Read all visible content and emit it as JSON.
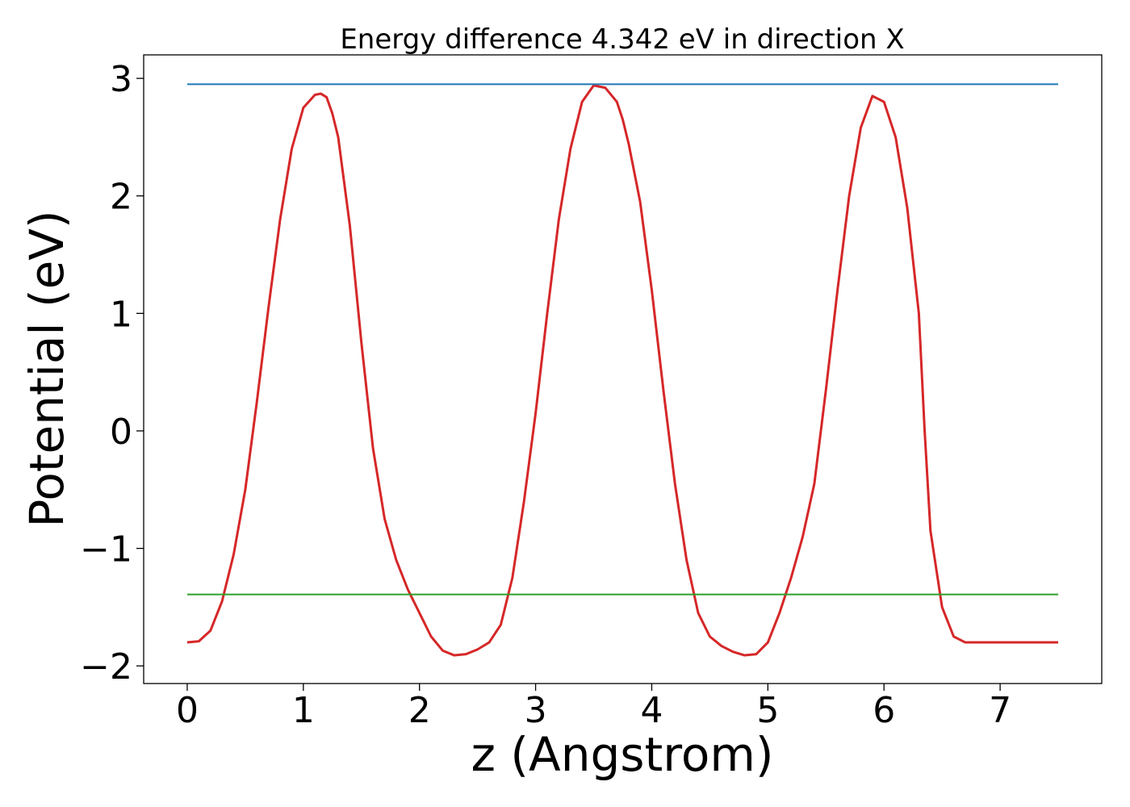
{
  "chart_data": {
    "type": "line",
    "title": "Energy difference 4.342 eV in direction X",
    "xlabel": "z (Angstrom)",
    "ylabel": "Potential (eV)",
    "xlim": [
      -0.375,
      7.875
    ],
    "ylim": [
      -2.15,
      3.2
    ],
    "xticks": [
      0,
      1,
      2,
      3,
      4,
      5,
      6,
      7
    ],
    "xtick_labels": [
      "0",
      "1",
      "2",
      "3",
      "4",
      "5",
      "6",
      "7"
    ],
    "yticks": [
      -2,
      -1,
      0,
      1,
      2,
      3
    ],
    "ytick_labels": [
      "−2",
      "−1",
      "0",
      "1",
      "2",
      "3"
    ],
    "grid": false,
    "series": [
      {
        "color": "#d62728",
        "x": [
          0,
          0.1,
          0.2,
          0.3,
          0.4,
          0.5,
          0.6,
          0.7,
          0.8,
          0.9,
          1.0,
          1.1,
          1.15,
          1.2,
          1.25,
          1.3,
          1.4,
          1.5,
          1.6,
          1.7,
          1.8,
          1.9,
          2.0,
          2.1,
          2.2,
          2.3,
          2.4,
          2.5,
          2.6,
          2.7,
          2.8,
          2.9,
          3.0,
          3.1,
          3.2,
          3.3,
          3.4,
          3.5,
          3.6,
          3.7,
          3.75,
          3.8,
          3.9,
          4.0,
          4.1,
          4.2,
          4.3,
          4.4,
          4.5,
          4.6,
          4.7,
          4.8,
          4.9,
          5.0,
          5.1,
          5.2,
          5.3,
          5.4,
          5.5,
          5.6,
          5.7,
          5.8,
          5.9,
          6.0,
          6.1,
          6.2,
          6.3,
          6.35,
          6.4,
          6.5,
          6.6,
          6.7,
          6.8,
          6.9,
          7.0,
          7.1,
          7.2,
          7.3,
          7.4,
          7.5
        ],
        "y": [
          -1.8,
          -1.79,
          -1.7,
          -1.45,
          -1.05,
          -0.5,
          0.25,
          1.05,
          1.8,
          2.4,
          2.75,
          2.86,
          2.87,
          2.84,
          2.7,
          2.5,
          1.75,
          0.75,
          -0.15,
          -0.75,
          -1.1,
          -1.35,
          -1.55,
          -1.75,
          -1.87,
          -1.91,
          -1.9,
          -1.86,
          -1.8,
          -1.65,
          -1.25,
          -0.6,
          0.15,
          1.0,
          1.8,
          2.4,
          2.8,
          2.94,
          2.92,
          2.8,
          2.65,
          2.45,
          1.95,
          1.2,
          0.35,
          -0.45,
          -1.1,
          -1.55,
          -1.75,
          -1.83,
          -1.88,
          -1.91,
          -1.9,
          -1.8,
          -1.55,
          -1.25,
          -0.9,
          -0.45,
          0.35,
          1.2,
          2.0,
          2.58,
          2.85,
          2.8,
          2.5,
          1.9,
          1.0,
          0.0,
          -0.85,
          -1.5,
          -1.75,
          -1.8,
          -1.8,
          -1.8,
          -1.8,
          -1.8,
          -1.8,
          -1.8,
          -1.8,
          -1.8
        ]
      },
      {
        "color": "#1f77b4",
        "x": [
          0,
          7.5
        ],
        "y": [
          2.95,
          2.95
        ]
      },
      {
        "color": "#2ca02c",
        "x": [
          0,
          7.5
        ],
        "y": [
          -1.392,
          -1.392
        ]
      }
    ]
  }
}
